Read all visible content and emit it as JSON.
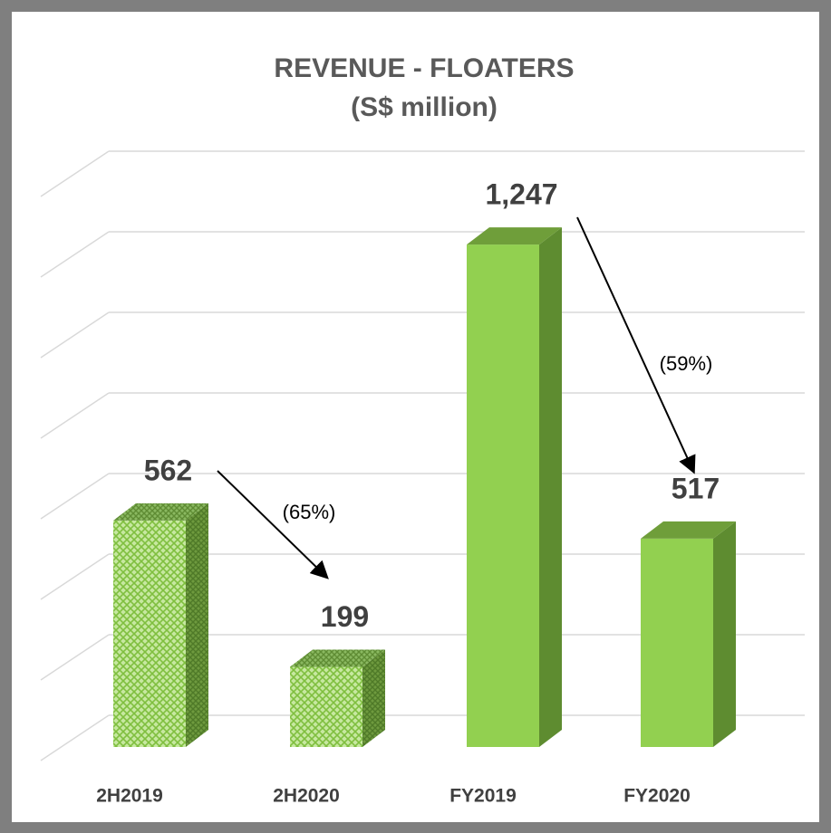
{
  "chart_data": {
    "type": "bar3d",
    "title": "REVENUE - FLOATERS",
    "subtitle": "(S$ million)",
    "categories": [
      "2H2019",
      "2H2020",
      "FY2019",
      "FY2020"
    ],
    "values": [
      562,
      199,
      1247,
      517
    ],
    "value_labels": [
      "562",
      "199",
      "1,247",
      "517"
    ],
    "hatched": [
      true,
      true,
      false,
      false
    ],
    "color": "#92d050",
    "ylim": [
      0,
      1400
    ],
    "yticks": [
      0,
      200,
      400,
      600,
      800,
      1000,
      1200,
      1400
    ],
    "grid": true,
    "annotations": [
      "(65%)",
      "(59%)"
    ]
  }
}
